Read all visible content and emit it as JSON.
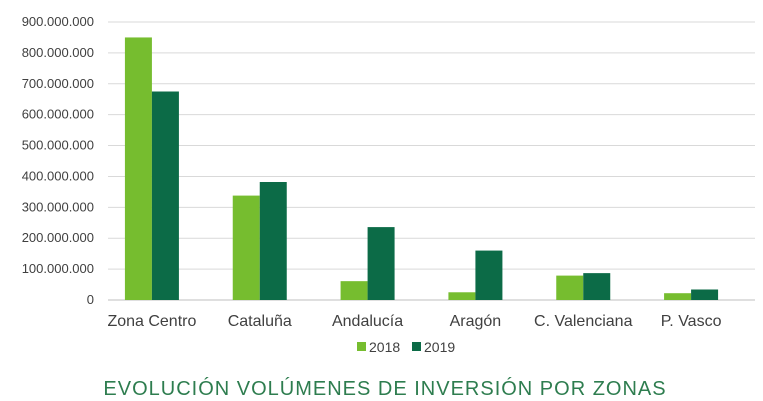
{
  "chart_data": {
    "type": "bar",
    "title": "EVOLUCIÓN VOLÚMENES DE INVERSIÓN POR ZONAS",
    "xlabel": "",
    "ylabel": "",
    "categories": [
      "Zona Centro",
      "Cataluña",
      "Andalucía",
      "Aragón",
      "C. Valenciana",
      "P. Vasco"
    ],
    "series": [
      {
        "name": "2018",
        "color": "#76bd2f",
        "values": [
          850000000,
          338000000,
          61000000,
          25000000,
          79000000,
          22000000
        ]
      },
      {
        "name": "2019",
        "color": "#0c6b47",
        "values": [
          675000000,
          382000000,
          236000000,
          160000000,
          87000000,
          34000000
        ]
      }
    ],
    "ylim": [
      0,
      900000000
    ],
    "yticks": [
      0,
      100000000,
      200000000,
      300000000,
      400000000,
      500000000,
      600000000,
      700000000,
      800000000,
      900000000
    ],
    "ytick_labels": [
      "0",
      "100.000.000",
      "200.000.000",
      "300.000.000",
      "400.000.000",
      "500.000.000",
      "600.000.000",
      "700.000.000",
      "800.000.000",
      "900.000.000"
    ],
    "grid": true,
    "legend": "bottom"
  }
}
